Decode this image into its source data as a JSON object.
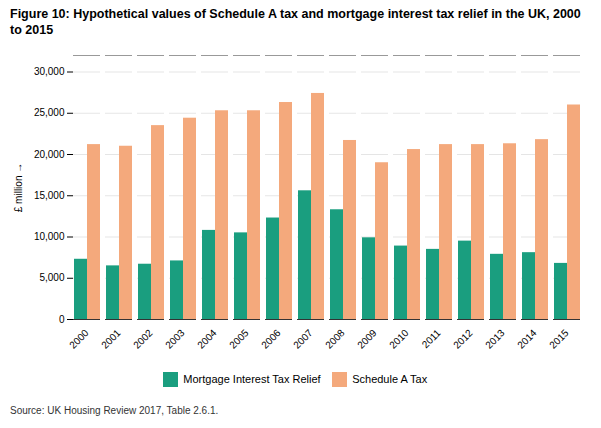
{
  "chart_data": {
    "type": "bar",
    "title": "Figure 10: Hypothetical values of Schedule A tax and mortgage interest tax relief in the UK, 2000 to 2015",
    "ylabel": "£ million",
    "caption": "Source: UK Housing Review 2017, Table 2.6.1.",
    "categories": [
      "2000",
      "2001",
      "2002",
      "2003",
      "2004",
      "2005",
      "2006",
      "2007",
      "2008",
      "2009",
      "2010",
      "2011",
      "2012",
      "2013",
      "2014",
      "2015"
    ],
    "series": [
      {
        "name": "Mortgage Interest Tax Relief",
        "color": "#1a9e7f",
        "values": [
          7300,
          6500,
          6700,
          7100,
          10800,
          10500,
          12300,
          15600,
          13300,
          9900,
          8900,
          8500,
          9500,
          7900,
          8100,
          6800
        ]
      },
      {
        "name": "Schedule A  Tax",
        "color": "#f4a97c",
        "values": [
          21200,
          21000,
          23500,
          24400,
          25300,
          25300,
          26300,
          27400,
          21700,
          19000,
          20600,
          21200,
          21200,
          21300,
          21800,
          26000
        ]
      }
    ],
    "ylim": [
      0,
      32000
    ],
    "yticks": [
      0,
      {
        "value": 5000,
        "label": "5,000"
      },
      {
        "value": 10000,
        "label": "10,000"
      },
      {
        "value": 15000,
        "label": "15,000"
      },
      {
        "value": 20000,
        "label": "20,000"
      },
      {
        "value": 25000,
        "label": "25,000"
      },
      {
        "value": 30000,
        "label": "30,000"
      }
    ],
    "grid": true,
    "legend": "bottom"
  }
}
